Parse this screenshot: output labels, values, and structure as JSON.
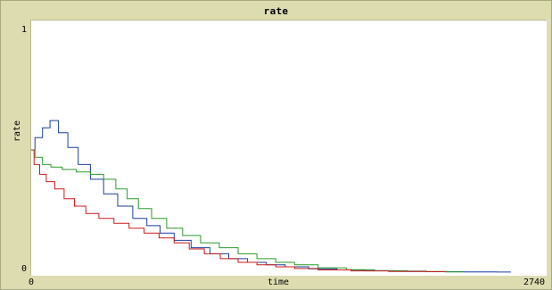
{
  "chart_data": {
    "type": "line",
    "title": "rate",
    "xlabel": "time",
    "ylabel": "rate",
    "x_tick_min": "0",
    "x_tick_max": "2740",
    "y_tick_min": "0",
    "y_tick_max": "1",
    "xlim": [
      0,
      2740
    ],
    "ylim": [
      0,
      1
    ],
    "grid": false,
    "series": [
      {
        "color": "#1a3fa0",
        "x": [
          0,
          40,
          80,
          120,
          170,
          220,
          280,
          350,
          420,
          500,
          580,
          650,
          720,
          800,
          900,
          1000,
          1100,
          1200,
          1300,
          1400,
          1550,
          1700,
          1850,
          2000,
          2200,
          2400,
          2550
        ],
        "y": [
          0.5,
          0.55,
          0.59,
          0.62,
          0.57,
          0.51,
          0.44,
          0.38,
          0.32,
          0.27,
          0.22,
          0.19,
          0.16,
          0.13,
          0.1,
          0.075,
          0.055,
          0.04,
          0.03,
          0.022,
          0.014,
          0.009,
          0.006,
          0.004,
          0.002,
          0.001,
          0.0005
        ]
      },
      {
        "color": "#2a9a2a",
        "x": [
          0,
          40,
          80,
          130,
          200,
          280,
          350,
          420,
          480,
          540,
          600,
          680,
          760,
          850,
          950,
          1050,
          1150,
          1250,
          1350,
          1450,
          1600,
          1750,
          1900,
          2100,
          2300
        ],
        "y": [
          0.5,
          0.47,
          0.44,
          0.43,
          0.42,
          0.41,
          0.4,
          0.38,
          0.34,
          0.3,
          0.26,
          0.22,
          0.18,
          0.15,
          0.12,
          0.1,
          0.075,
          0.055,
          0.04,
          0.03,
          0.018,
          0.01,
          0.006,
          0.003,
          0.001
        ]
      },
      {
        "color": "#cc1a1a",
        "x": [
          0,
          30,
          60,
          100,
          150,
          200,
          260,
          320,
          400,
          480,
          560,
          640,
          720,
          800,
          880,
          960,
          1050,
          1150,
          1250,
          1350,
          1450,
          1600,
          1800,
          2000,
          2200
        ],
        "y": [
          0.5,
          0.44,
          0.4,
          0.37,
          0.34,
          0.3,
          0.27,
          0.24,
          0.22,
          0.2,
          0.18,
          0.16,
          0.14,
          0.12,
          0.095,
          0.075,
          0.055,
          0.04,
          0.03,
          0.022,
          0.015,
          0.009,
          0.005,
          0.003,
          0.002
        ]
      }
    ]
  }
}
